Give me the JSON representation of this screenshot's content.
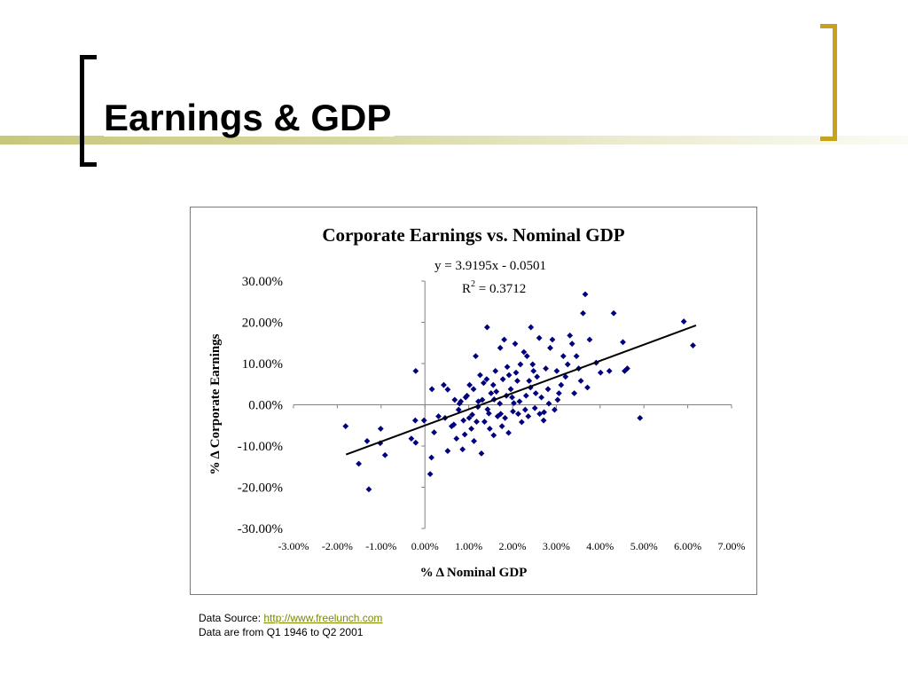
{
  "slide": {
    "title": "Earnings & GDP"
  },
  "source": {
    "label": "Data Source: ",
    "link": "http://www.freelunch.com",
    "note": "Data are from Q1 1946 to Q2 2001"
  },
  "colors": {
    "accent_bar": "#c8c87c",
    "bracket_right": "#c9a21b",
    "bracket_left": "#000000",
    "marker": "#00007f",
    "link": "#7a8a00"
  },
  "chart_data": {
    "type": "scatter",
    "title": "Corporate Earnings vs. Nominal GDP",
    "xlabel": "% Δ Nominal GDP",
    "ylabel": "% Δ Corporate Earnings",
    "xlim": [
      -0.03,
      0.07
    ],
    "ylim": [
      -0.3,
      0.3
    ],
    "x_ticks": [
      "-3.00%",
      "-2.00%",
      "-1.00%",
      "0.00%",
      "1.00%",
      "2.00%",
      "3.00%",
      "4.00%",
      "5.00%",
      "6.00%",
      "7.00%"
    ],
    "y_ticks": [
      "30.00%",
      "20.00%",
      "10.00%",
      "0.00%",
      "-10.00%",
      "-20.00%",
      "-30.00%"
    ],
    "trendline": {
      "slope": 3.9195,
      "intercept": -0.0501,
      "x_range": [
        -0.018,
        0.0619
      ],
      "equation": "y = 3.9195x - 0.0501",
      "r2_prefix": "R",
      "r2_sup": "2",
      "r2_value": " = 0.3712"
    },
    "grid": false,
    "legend": "none",
    "series": [
      {
        "points": [
          [
            -0.0181,
            -0.052
          ],
          [
            -0.0151,
            -0.143
          ],
          [
            -0.0132,
            -0.088
          ],
          [
            -0.0128,
            -0.205
          ],
          [
            -0.0102,
            -0.093
          ],
          [
            -0.0101,
            -0.058
          ],
          [
            -0.0091,
            -0.122
          ],
          [
            -0.0031,
            -0.082
          ],
          [
            -0.0022,
            -0.038
          ],
          [
            -0.0021,
            0.082
          ],
          [
            -0.0021,
            -0.092
          ],
          [
            -0.0002,
            -0.038
          ],
          [
            0.0012,
            -0.168
          ],
          [
            0.0015,
            -0.128
          ],
          [
            0.0016,
            0.038
          ],
          [
            0.0021,
            -0.067
          ],
          [
            0.0031,
            -0.028
          ],
          [
            0.0043,
            0.048
          ],
          [
            0.0046,
            -0.032
          ],
          [
            0.0052,
            -0.112
          ],
          [
            0.0052,
            0.037
          ],
          [
            0.0061,
            -0.052
          ],
          [
            0.0066,
            -0.048
          ],
          [
            0.0072,
            -0.082
          ],
          [
            0.0077,
            -0.012
          ],
          [
            0.0082,
            0.008
          ],
          [
            0.0086,
            -0.108
          ],
          [
            0.0091,
            -0.072
          ],
          [
            0.0096,
            0.022
          ],
          [
            0.0101,
            -0.032
          ],
          [
            0.0102,
            0.048
          ],
          [
            0.0106,
            -0.058
          ],
          [
            0.0111,
            0.038
          ],
          [
            0.0112,
            -0.088
          ],
          [
            0.0116,
            0.118
          ],
          [
            0.0121,
            -0.005
          ],
          [
            0.0126,
            0.072
          ],
          [
            0.0129,
            -0.118
          ],
          [
            0.0131,
            0.012
          ],
          [
            0.0136,
            -0.041
          ],
          [
            0.0141,
            0.062
          ],
          [
            0.0142,
            0.188
          ],
          [
            0.0146,
            -0.021
          ],
          [
            0.0151,
            0.028
          ],
          [
            0.0156,
            0.048
          ],
          [
            0.0157,
            -0.074
          ],
          [
            0.0161,
            0.082
          ],
          [
            0.0166,
            -0.028
          ],
          [
            0.0171,
            0.003
          ],
          [
            0.0172,
            0.138
          ],
          [
            0.0176,
            -0.052
          ],
          [
            0.0181,
            0.158
          ],
          [
            0.0186,
            0.022
          ],
          [
            0.0191,
            -0.068
          ],
          [
            0.0196,
            0.038
          ],
          [
            0.0201,
            -0.016
          ],
          [
            0.0206,
            0.148
          ],
          [
            0.0211,
            0.058
          ],
          [
            0.0216,
            0.008
          ],
          [
            0.0221,
            -0.042
          ],
          [
            0.0226,
            0.128
          ],
          [
            0.0231,
            0.022
          ],
          [
            0.0236,
            -0.028
          ],
          [
            0.0241,
            0.042
          ],
          [
            0.0242,
            0.188
          ],
          [
            0.0246,
            0.098
          ],
          [
            0.0251,
            -0.008
          ],
          [
            0.0256,
            0.068
          ],
          [
            0.0261,
            0.162
          ],
          [
            0.0266,
            0.018
          ],
          [
            0.0271,
            -0.038
          ],
          [
            0.0276,
            0.088
          ],
          [
            0.0281,
            0.038
          ],
          [
            0.0286,
            0.138
          ],
          [
            0.0291,
            0.158
          ],
          [
            0.0296,
            -0.012
          ],
          [
            0.0301,
            0.082
          ],
          [
            0.0306,
            0.028
          ],
          [
            0.0311,
            0.048
          ],
          [
            0.0316,
            0.118
          ],
          [
            0.0321,
            0.068
          ],
          [
            0.0326,
            0.098
          ],
          [
            0.0331,
            0.168
          ],
          [
            0.0336,
            0.148
          ],
          [
            0.0341,
            0.028
          ],
          [
            0.0346,
            0.118
          ],
          [
            0.0351,
            0.088
          ],
          [
            0.0356,
            0.058
          ],
          [
            0.0361,
            0.222
          ],
          [
            0.0366,
            0.268
          ],
          [
            0.0371,
            0.042
          ],
          [
            0.0376,
            0.158
          ],
          [
            0.0391,
            0.102
          ],
          [
            0.0401,
            0.078
          ],
          [
            0.0421,
            0.082
          ],
          [
            0.0431,
            0.222
          ],
          [
            0.0452,
            0.152
          ],
          [
            0.0456,
            0.082
          ],
          [
            0.0462,
            0.088
          ],
          [
            0.0491,
            -0.032
          ],
          [
            0.0591,
            0.202
          ],
          [
            0.0612,
            0.144
          ],
          [
            0.0122,
            0.008
          ],
          [
            0.0143,
            -0.011
          ],
          [
            0.0173,
            -0.022
          ],
          [
            0.0178,
            0.062
          ],
          [
            0.0192,
            0.072
          ],
          [
            0.0203,
            0.004
          ],
          [
            0.0218,
            0.098
          ],
          [
            0.0229,
            -0.012
          ],
          [
            0.0248,
            0.082
          ],
          [
            0.0262,
            -0.022
          ],
          [
            0.0283,
            0.003
          ],
          [
            0.0108,
            -0.024
          ],
          [
            0.0093,
            0.018
          ],
          [
            0.0079,
            0.003
          ],
          [
            0.0134,
            0.053
          ],
          [
            0.0158,
            0.013
          ],
          [
            0.0183,
            -0.032
          ],
          [
            0.0199,
            0.018
          ],
          [
            0.0253,
            0.028
          ],
          [
            0.0272,
            -0.018
          ],
          [
            0.0303,
            0.012
          ],
          [
            0.0118,
            -0.041
          ],
          [
            0.0148,
            -0.058
          ],
          [
            0.0208,
            0.078
          ],
          [
            0.0238,
            0.058
          ],
          [
            0.0068,
            0.012
          ],
          [
            0.0088,
            -0.038
          ],
          [
            0.0163,
            0.032
          ],
          [
            0.0188,
            0.092
          ],
          [
            0.0213,
            -0.022
          ],
          [
            0.0233,
            0.118
          ]
        ]
      }
    ]
  }
}
